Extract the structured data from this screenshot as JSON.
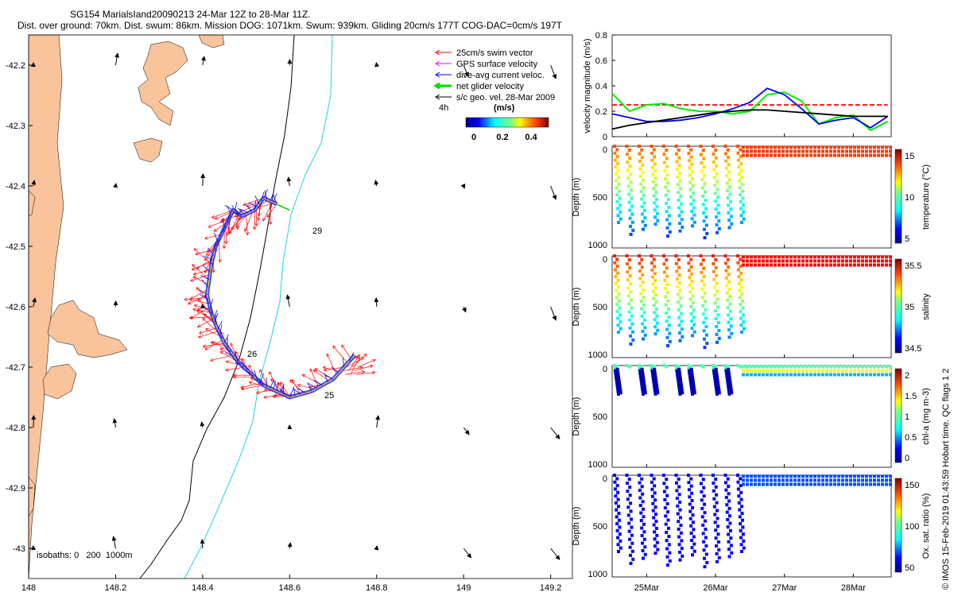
{
  "title": {
    "line1": "SG154 MarialsIand20090213 24-Mar 12Z to 28-Mar 11Z.",
    "line2": "Dist. over ground: 70km. Dist. swum: 86km. Mission DOG: 1071km. Swum: 939km. Gliding 20cm/s 177T COG-DAC=0cm/s 197T"
  },
  "map": {
    "legend": [
      {
        "label": "25cm/s swim vector",
        "color": "#ff0000"
      },
      {
        "label": "GPS surface velocity",
        "color": "#ff00ff"
      },
      {
        "label": "dive-avg current veloc.",
        "color": "#0000ff"
      },
      {
        "label": "net glider velocity",
        "color": "#00dd00"
      },
      {
        "label": "s/c geo. vel. 28-Mar 2009",
        "color": "#000000"
      }
    ],
    "colorbar_label": "(m/s)",
    "colorbar_ticks": [
      "0",
      "0.2",
      "0.4"
    ],
    "time_label": "4h",
    "isobaths_label": "isobaths: 0   200  1000m",
    "day_labels": [
      "29",
      "26",
      "25"
    ],
    "land_color": "#f9c49b",
    "chart_data": {
      "type": "scatter",
      "xlabel": "",
      "ylabel": "",
      "xlim": [
        148.0,
        149.25
      ],
      "ylim": [
        -43.05,
        -42.15
      ],
      "xticks": [
        "148",
        "148.2",
        "148.4",
        "148.6",
        "148.8",
        "149",
        "149.2"
      ],
      "yticks": [
        "-42.2",
        "-42.3",
        "-42.4",
        "-42.5",
        "-42.6",
        "-42.7",
        "-42.8",
        "-42.9",
        "-43"
      ],
      "track": {
        "lon": [
          148.57,
          148.54,
          148.52,
          148.49,
          148.47,
          148.45,
          148.43,
          148.42,
          148.41,
          148.42,
          148.43,
          148.45,
          148.48,
          148.51,
          148.54,
          148.57,
          148.6,
          148.65,
          148.7,
          148.75
        ],
        "lat": [
          -42.43,
          -42.42,
          -42.44,
          -42.45,
          -42.44,
          -42.47,
          -42.5,
          -42.53,
          -42.58,
          -42.61,
          -42.63,
          -42.66,
          -42.69,
          -42.71,
          -42.73,
          -42.74,
          -42.75,
          -42.74,
          -42.72,
          -42.68
        ]
      }
    }
  },
  "panels": [
    {
      "ylabel": "velocity magnitude (m/s)",
      "chart_data": {
        "type": "line",
        "ylim": [
          0,
          0.8
        ],
        "yticks": [
          "0",
          "0.2",
          "0.4",
          "0.6",
          "0.8"
        ],
        "x_days": [
          24.5,
          24.75,
          25.0,
          25.25,
          25.5,
          25.75,
          26.0,
          26.25,
          26.5,
          26.75,
          27.0,
          27.25,
          27.5,
          27.75,
          28.0,
          28.25,
          28.5
        ],
        "series": [
          {
            "color": "#ff0000",
            "dashed": true,
            "values": [
              0.25,
              0.25,
              0.25,
              0.25,
              0.25,
              0.25,
              0.25,
              0.25,
              0.25,
              0.25,
              0.25,
              0.25,
              0.25,
              0.25,
              0.25,
              0.25,
              0.25
            ]
          },
          {
            "color": "#00ee00",
            "values": [
              0.34,
              0.2,
              0.25,
              0.26,
              0.22,
              0.2,
              0.2,
              0.18,
              0.2,
              0.33,
              0.35,
              0.28,
              0.1,
              0.15,
              0.17,
              0.05,
              0.12
            ]
          },
          {
            "color": "#0000ff",
            "values": [
              0.18,
              0.15,
              0.12,
              0.12,
              0.13,
              0.15,
              0.18,
              0.22,
              0.27,
              0.38,
              0.33,
              0.22,
              0.1,
              0.13,
              0.15,
              0.07,
              0.16
            ]
          },
          {
            "color": "#000000",
            "values": [
              0.06,
              0.09,
              0.11,
              0.13,
              0.15,
              0.17,
              0.19,
              0.2,
              0.21,
              0.21,
              0.2,
              0.19,
              0.18,
              0.17,
              0.16,
              0.16,
              0.16
            ]
          }
        ]
      }
    },
    {
      "ylabel": "temperature (°C)",
      "yaxis": "Depth (m)",
      "yticks": [
        "0",
        "500",
        "1000"
      ],
      "cbar_ticks": [
        "15",
        "10",
        "5"
      ]
    },
    {
      "ylabel": "salinity",
      "yaxis": "Depth (m)",
      "yticks": [
        "0",
        "500",
        "1000"
      ],
      "cbar_ticks": [
        "35.5",
        "35",
        "34.5"
      ]
    },
    {
      "ylabel": "chl-a (mg m-3)",
      "yaxis": "Depth (m)",
      "yticks": [
        "0",
        "500",
        "1000"
      ],
      "cbar_ticks": [
        "2",
        "1.5",
        "1",
        "0.5",
        "0"
      ]
    },
    {
      "ylabel": "Ox. sat. ratio (%)",
      "yaxis": "Depth (m)",
      "yticks": [
        "0",
        "500",
        "1000"
      ],
      "cbar_ticks": [
        "150",
        "100",
        "50"
      ]
    }
  ],
  "time_axis_labels": [
    "25Mar",
    "26Mar",
    "27Mar",
    "28Mar"
  ],
  "side_note": "© IMOS 15-Feb-2019 01:43:59 Hobart time. QC flags 1  2"
}
